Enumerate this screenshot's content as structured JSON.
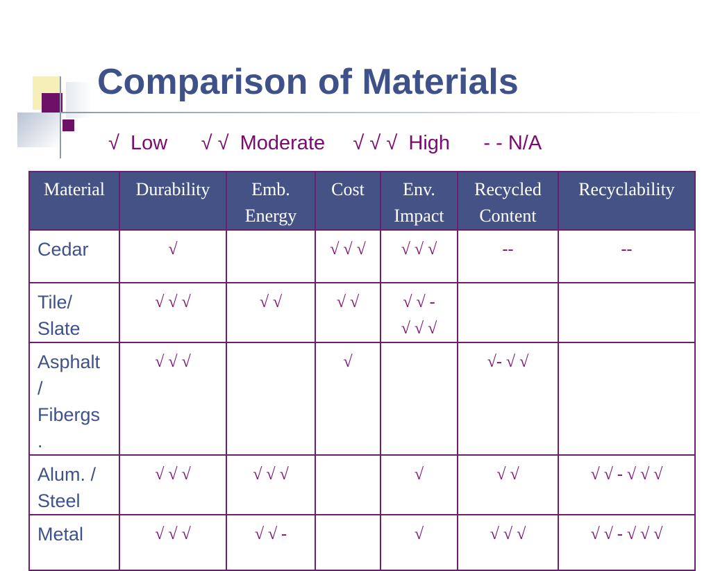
{
  "slide": {
    "title": "Comparison of Materials",
    "legend": [
      {
        "symbol": "√",
        "label": "Low"
      },
      {
        "symbol": "√ √",
        "label": "Moderate"
      },
      {
        "symbol": "√ √ √",
        "label": "High"
      },
      {
        "symbol": "- -",
        "label": "N/A"
      }
    ]
  },
  "table": {
    "headers": [
      "Material",
      "Durability",
      "Emb.\nEnergy",
      "Cost",
      "Env.\nImpact",
      "Recycled\nContent",
      "Recyclability"
    ],
    "rows": [
      {
        "material": "Cedar",
        "cells": [
          "√",
          "",
          "√ √ √",
          "√ √ √",
          "--",
          "--"
        ]
      },
      {
        "material": "Tile/\nSlate",
        "cells": [
          "√ √ √",
          "√ √",
          "√ √",
          "√ √ -\n√ √ √",
          "",
          ""
        ]
      },
      {
        "material": "Asphalt\n/\nFibergs\n.",
        "cells": [
          "√ √ √",
          "",
          "√",
          "",
          "√- √ √",
          ""
        ]
      },
      {
        "material": "Alum. /\nSteel",
        "cells": [
          "√ √ √",
          "√ √ √",
          "",
          "√",
          "√ √",
          "√ √ - √ √ √"
        ]
      },
      {
        "material": "Metal",
        "cells": [
          "√ √ √",
          "√ √ -",
          "",
          "√",
          "√ √ √",
          "√ √ - √ √ √"
        ]
      }
    ]
  },
  "colors": {
    "title": "#3f5189",
    "header_bg": "#445286",
    "body_text": "#7a0a70",
    "border": "#6b1f6f",
    "deco_purple": "#6e1166",
    "deco_yellow": "#f6f0b8"
  }
}
